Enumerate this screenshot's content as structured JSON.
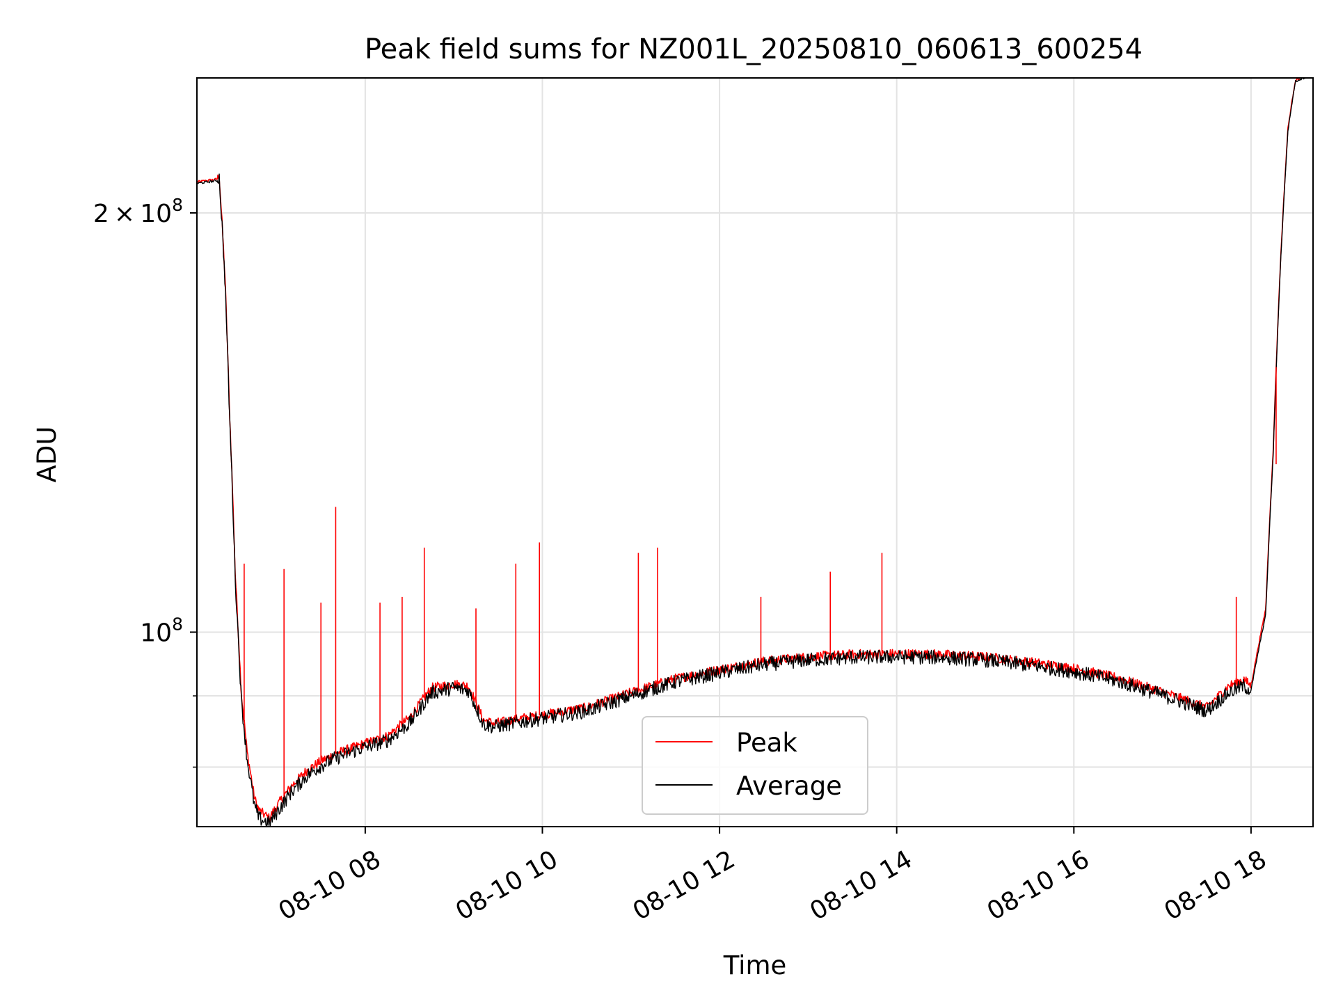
{
  "chart_data": {
    "type": "line",
    "title": "Peak field sums for NZ001L_20250810_060613_600254",
    "xlabel": "Time",
    "ylabel": "ADU",
    "y_scale": "log",
    "grid": true,
    "legend_position": "lower center",
    "xlim": [
      "2025-08-10 06:06",
      "2025-08-10 18:42"
    ],
    "ylim": [
      72500000,
      250000000
    ],
    "x_ticks": [
      {
        "value": "2025-08-10 08:00",
        "label": "08-10 08"
      },
      {
        "value": "2025-08-10 10:00",
        "label": "08-10 10"
      },
      {
        "value": "2025-08-10 12:00",
        "label": "08-10 12"
      },
      {
        "value": "2025-08-10 14:00",
        "label": "08-10 14"
      },
      {
        "value": "2025-08-10 16:00",
        "label": "08-10 16"
      },
      {
        "value": "2025-08-10 18:00",
        "label": "08-10 18"
      }
    ],
    "y_ticks": [
      {
        "value": 200000000,
        "label": "2 × 10⁸",
        "mantissa": "2",
        "exponent": "8"
      },
      {
        "value": 100000000,
        "label": "10⁸",
        "mantissa": "",
        "exponent": "8"
      }
    ],
    "y_minor_ticks": [
      90000000,
      80000000
    ],
    "series": [
      {
        "name": "Peak",
        "color": "#ff0000",
        "x": [
          "06:06",
          "06:20",
          "06:21",
          "06:25",
          "06:28",
          "06:32",
          "06:36",
          "06:40",
          "06:45",
          "06:48",
          "06:55",
          "07:00",
          "07:10",
          "07:20",
          "07:30",
          "07:40",
          "07:50",
          "08:00",
          "08:15",
          "08:30",
          "08:45",
          "09:00",
          "09:10",
          "09:20",
          "09:27",
          "09:35",
          "09:45",
          "10:00",
          "10:30",
          "11:00",
          "11:30",
          "12:00",
          "12:30",
          "13:00",
          "13:30",
          "14:00",
          "14:30",
          "15:00",
          "15:30",
          "16:00",
          "16:30",
          "17:00",
          "17:30",
          "17:45",
          "17:55",
          "18:00",
          "18:10",
          "18:15",
          "18:20",
          "18:25",
          "18:30",
          "18:35",
          "18:42"
        ],
        "y": [
          210500000,
          211500000,
          213500000,
          180000000,
          145000000,
          110000000,
          90500000,
          82000000,
          76000000,
          74500000,
          73500000,
          75000000,
          77500000,
          79500000,
          80800000,
          81800000,
          82500000,
          83200000,
          84200000,
          86800000,
          91200000,
          91800000,
          91500000,
          86500000,
          86000000,
          86300000,
          86700000,
          87200000,
          88300000,
          90500000,
          92600000,
          94000000,
          95300000,
          96000000,
          96400000,
          96500000,
          96400000,
          96000000,
          95200000,
          94200000,
          92700000,
          90600000,
          88300000,
          91500000,
          92500000,
          91500000,
          104000000,
          135000000,
          185000000,
          230000000,
          249000000,
          250500000,
          251000000
        ]
      },
      {
        "name": "Average",
        "color": "#000000",
        "x": [
          "06:06",
          "06:20",
          "06:21",
          "06:25",
          "06:28",
          "06:32",
          "06:36",
          "06:40",
          "06:45",
          "06:48",
          "06:55",
          "07:00",
          "07:10",
          "07:20",
          "07:30",
          "07:40",
          "07:50",
          "08:00",
          "08:15",
          "08:30",
          "08:45",
          "09:00",
          "09:10",
          "09:20",
          "09:27",
          "09:35",
          "09:45",
          "10:00",
          "10:30",
          "11:00",
          "11:30",
          "12:00",
          "12:30",
          "13:00",
          "13:30",
          "14:00",
          "14:30",
          "15:00",
          "15:30",
          "16:00",
          "16:30",
          "17:00",
          "17:30",
          "17:45",
          "17:55",
          "18:00",
          "18:10",
          "18:15",
          "18:20",
          "18:25",
          "18:30",
          "18:35",
          "18:42"
        ],
        "y": [
          210000000,
          211000000,
          213000000,
          179000000,
          144000000,
          109000000,
          89500000,
          81000000,
          75000000,
          73500000,
          72900000,
          74200000,
          76800000,
          78800000,
          80200000,
          81200000,
          82000000,
          82700000,
          83600000,
          86000000,
          90500000,
          91200000,
          90800000,
          85900000,
          85500000,
          85800000,
          86200000,
          86700000,
          87800000,
          90000000,
          92100000,
          93500000,
          94800000,
          95500000,
          95900000,
          96000000,
          95900000,
          95500000,
          94700000,
          93700000,
          92200000,
          90100000,
          87800000,
          90500000,
          91500000,
          90800000,
          103000000,
          134000000,
          184000000,
          229000000,
          248500000,
          250000000,
          250500000
        ]
      }
    ],
    "annotations": [
      {
        "series": "Peak",
        "x": "06:38",
        "y": 112000000
      },
      {
        "series": "Peak",
        "x": "07:05",
        "y": 111000000
      },
      {
        "series": "Peak",
        "x": "07:30",
        "y": 105000000
      },
      {
        "series": "Peak",
        "x": "07:40",
        "y": 123000000
      },
      {
        "series": "Peak",
        "x": "08:10",
        "y": 105000000
      },
      {
        "series": "Peak",
        "x": "08:25",
        "y": 106000000
      },
      {
        "series": "Peak",
        "x": "08:40",
        "y": 115000000
      },
      {
        "series": "Peak",
        "x": "09:15",
        "y": 104000000
      },
      {
        "series": "Peak",
        "x": "09:42",
        "y": 112000000
      },
      {
        "series": "Peak",
        "x": "09:58",
        "y": 116000000
      },
      {
        "series": "Peak",
        "x": "11:05",
        "y": 114000000
      },
      {
        "series": "Peak",
        "x": "11:18",
        "y": 115000000
      },
      {
        "series": "Peak",
        "x": "12:28",
        "y": 106000000
      },
      {
        "series": "Peak",
        "x": "13:15",
        "y": 110500000
      },
      {
        "series": "Peak",
        "x": "13:50",
        "y": 114000000
      },
      {
        "series": "Peak",
        "x": "17:50",
        "y": 106000000
      },
      {
        "series": "Peak",
        "x": "18:17",
        "y": 132000000
      }
    ]
  }
}
